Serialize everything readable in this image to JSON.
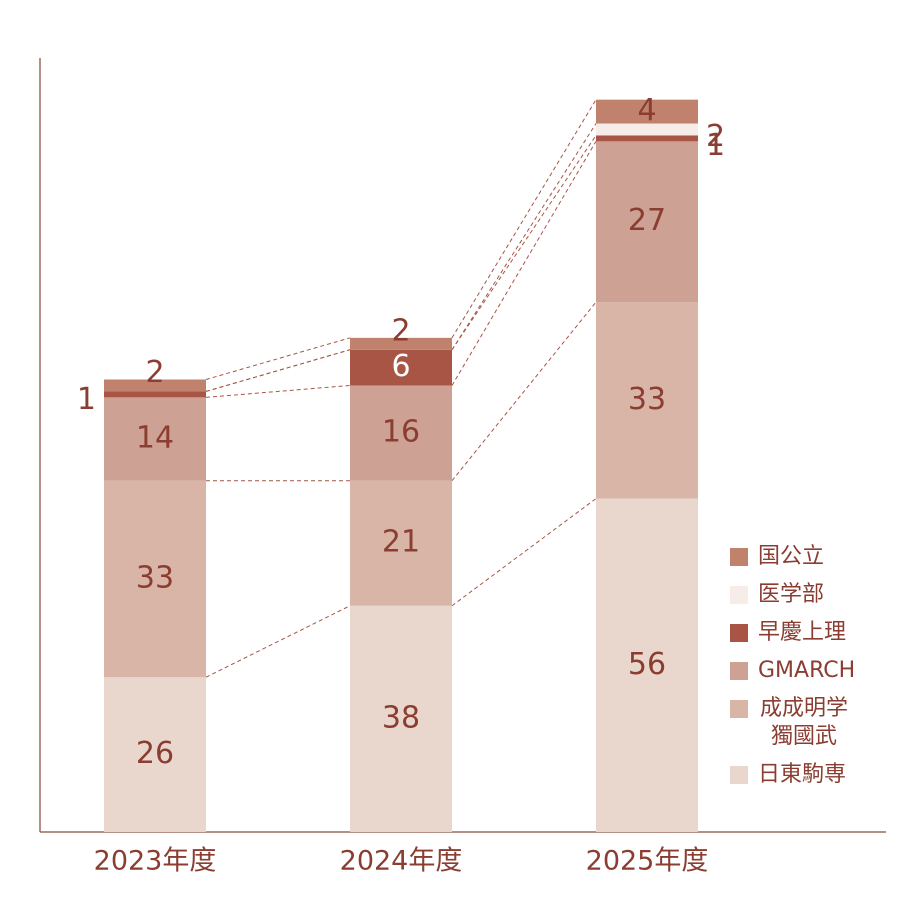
{
  "chart_data": {
    "type": "stacked-bar",
    "categories": [
      "2023年度",
      "2024年度",
      "2025年度"
    ],
    "series": [
      {
        "name": "日東駒専",
        "color": "#e9d7ce",
        "values": [
          26,
          38,
          56
        ]
      },
      {
        "name": "成成明学獨國武",
        "color": "#d9b5a8",
        "values": [
          33,
          21,
          33
        ]
      },
      {
        "name": "GMARCH",
        "color": "#cda193",
        "values": [
          14,
          16,
          27
        ]
      },
      {
        "name": "早慶上理",
        "color": "#a95545",
        "values": [
          1,
          6,
          1
        ]
      },
      {
        "name": "医学部",
        "color": "#f6ece8",
        "values": [
          0,
          0,
          2
        ]
      },
      {
        "name": "国公立",
        "color": "#c0816d",
        "values": [
          2,
          2,
          4
        ]
      }
    ],
    "ylim": [
      0,
      130
    ]
  }
}
